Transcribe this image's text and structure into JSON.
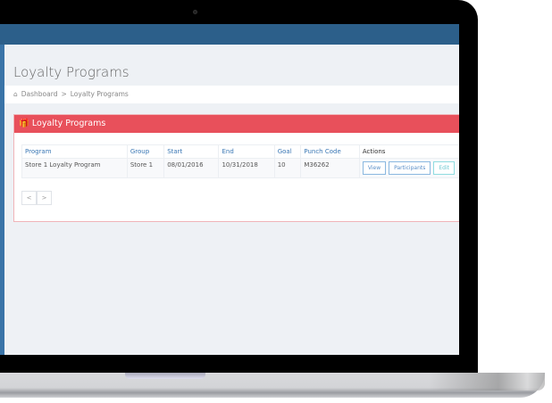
{
  "page": {
    "title": "Loyalty Programs"
  },
  "breadcrumb": {
    "home_icon": "home-icon",
    "items": [
      "Dashboard",
      "Loyalty Programs"
    ],
    "separator": ">"
  },
  "panel": {
    "icon": "gift-icon",
    "title": "Loyalty Programs",
    "header_color": "#e8505b"
  },
  "table": {
    "headers": [
      "Program",
      "Group",
      "Start",
      "End",
      "Goal",
      "Punch Code",
      "Actions"
    ],
    "rows": [
      {
        "program": "Store 1 Loyalty Program",
        "group": "Store 1",
        "start": "08/01/2016",
        "end": "10/31/2018",
        "goal": "10",
        "punch_code": "M36262",
        "actions": [
          "View",
          "Participants",
          "Edit"
        ]
      }
    ]
  },
  "pager": {
    "prev": "<",
    "next": ">"
  }
}
